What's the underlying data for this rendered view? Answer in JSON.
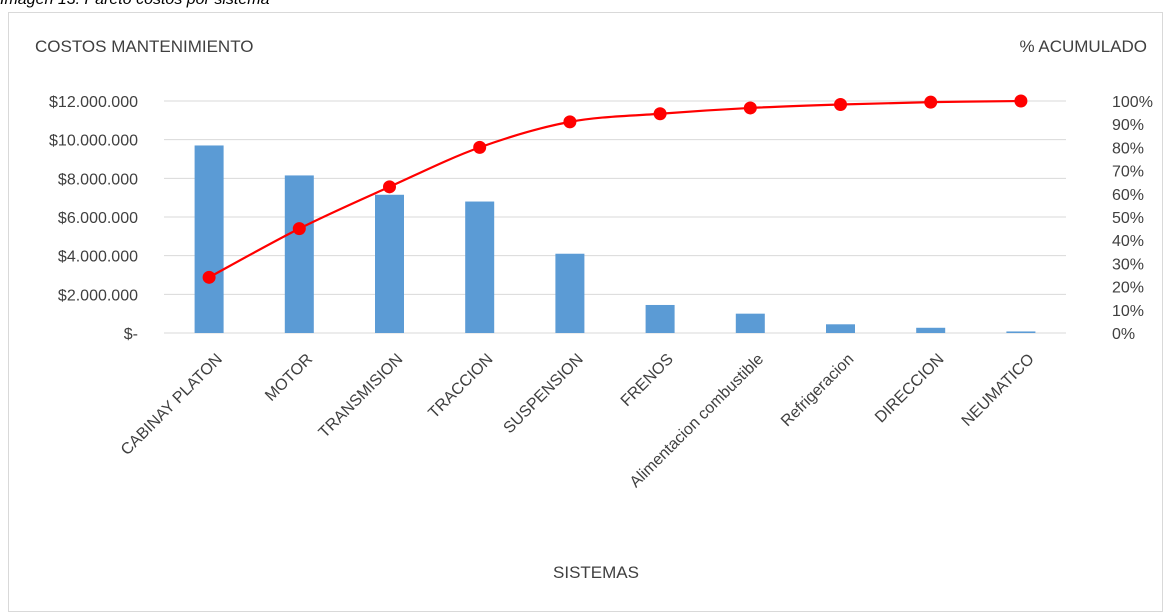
{
  "caption": "Imagen 13. Pareto costos por sistema",
  "chart_data": {
    "type": "bar",
    "title": "",
    "ylabel": "COSTOS MANTENIMIENTO",
    "y2label": "% ACUMULADO",
    "xlabel": "SISTEMAS",
    "categories": [
      "CABINAY PLATON",
      "MOTOR",
      "TRANSMISION",
      "TRACCION",
      "SUSPENSION",
      "FRENOS",
      "Alimentacion combustible",
      "Refrigeracion",
      "DIRECCION",
      "NEUMATICO"
    ],
    "ylim": [
      0,
      12000000
    ],
    "y2lim": [
      0,
      1
    ],
    "yticks": [
      {
        "value": 0,
        "label": "$-"
      },
      {
        "value": 2000000,
        "label": "$2.000.000"
      },
      {
        "value": 4000000,
        "label": "$4.000.000"
      },
      {
        "value": 6000000,
        "label": "$6.000.000"
      },
      {
        "value": 8000000,
        "label": "$8.000.000"
      },
      {
        "value": 10000000,
        "label": "$10.000.000"
      },
      {
        "value": 12000000,
        "label": "$12.000.000"
      }
    ],
    "y2ticks": [
      "0%",
      "10%",
      "20%",
      "30%",
      "40%",
      "50%",
      "60%",
      "70%",
      "80%",
      "90%",
      "100%"
    ],
    "series": [
      {
        "type": "bar",
        "color": "#5b9bd5",
        "values": [
          9700000,
          8150000,
          7150000,
          6800000,
          4100000,
          1450000,
          1000000,
          450000,
          270000,
          80000
        ]
      },
      {
        "type": "line",
        "color": "#ff0000",
        "axis": "right",
        "values": [
          0.24,
          0.45,
          0.63,
          0.8,
          0.91,
          0.945,
          0.97,
          0.985,
          0.995,
          1.0
        ]
      }
    ],
    "grid": true,
    "legend": "none"
  }
}
